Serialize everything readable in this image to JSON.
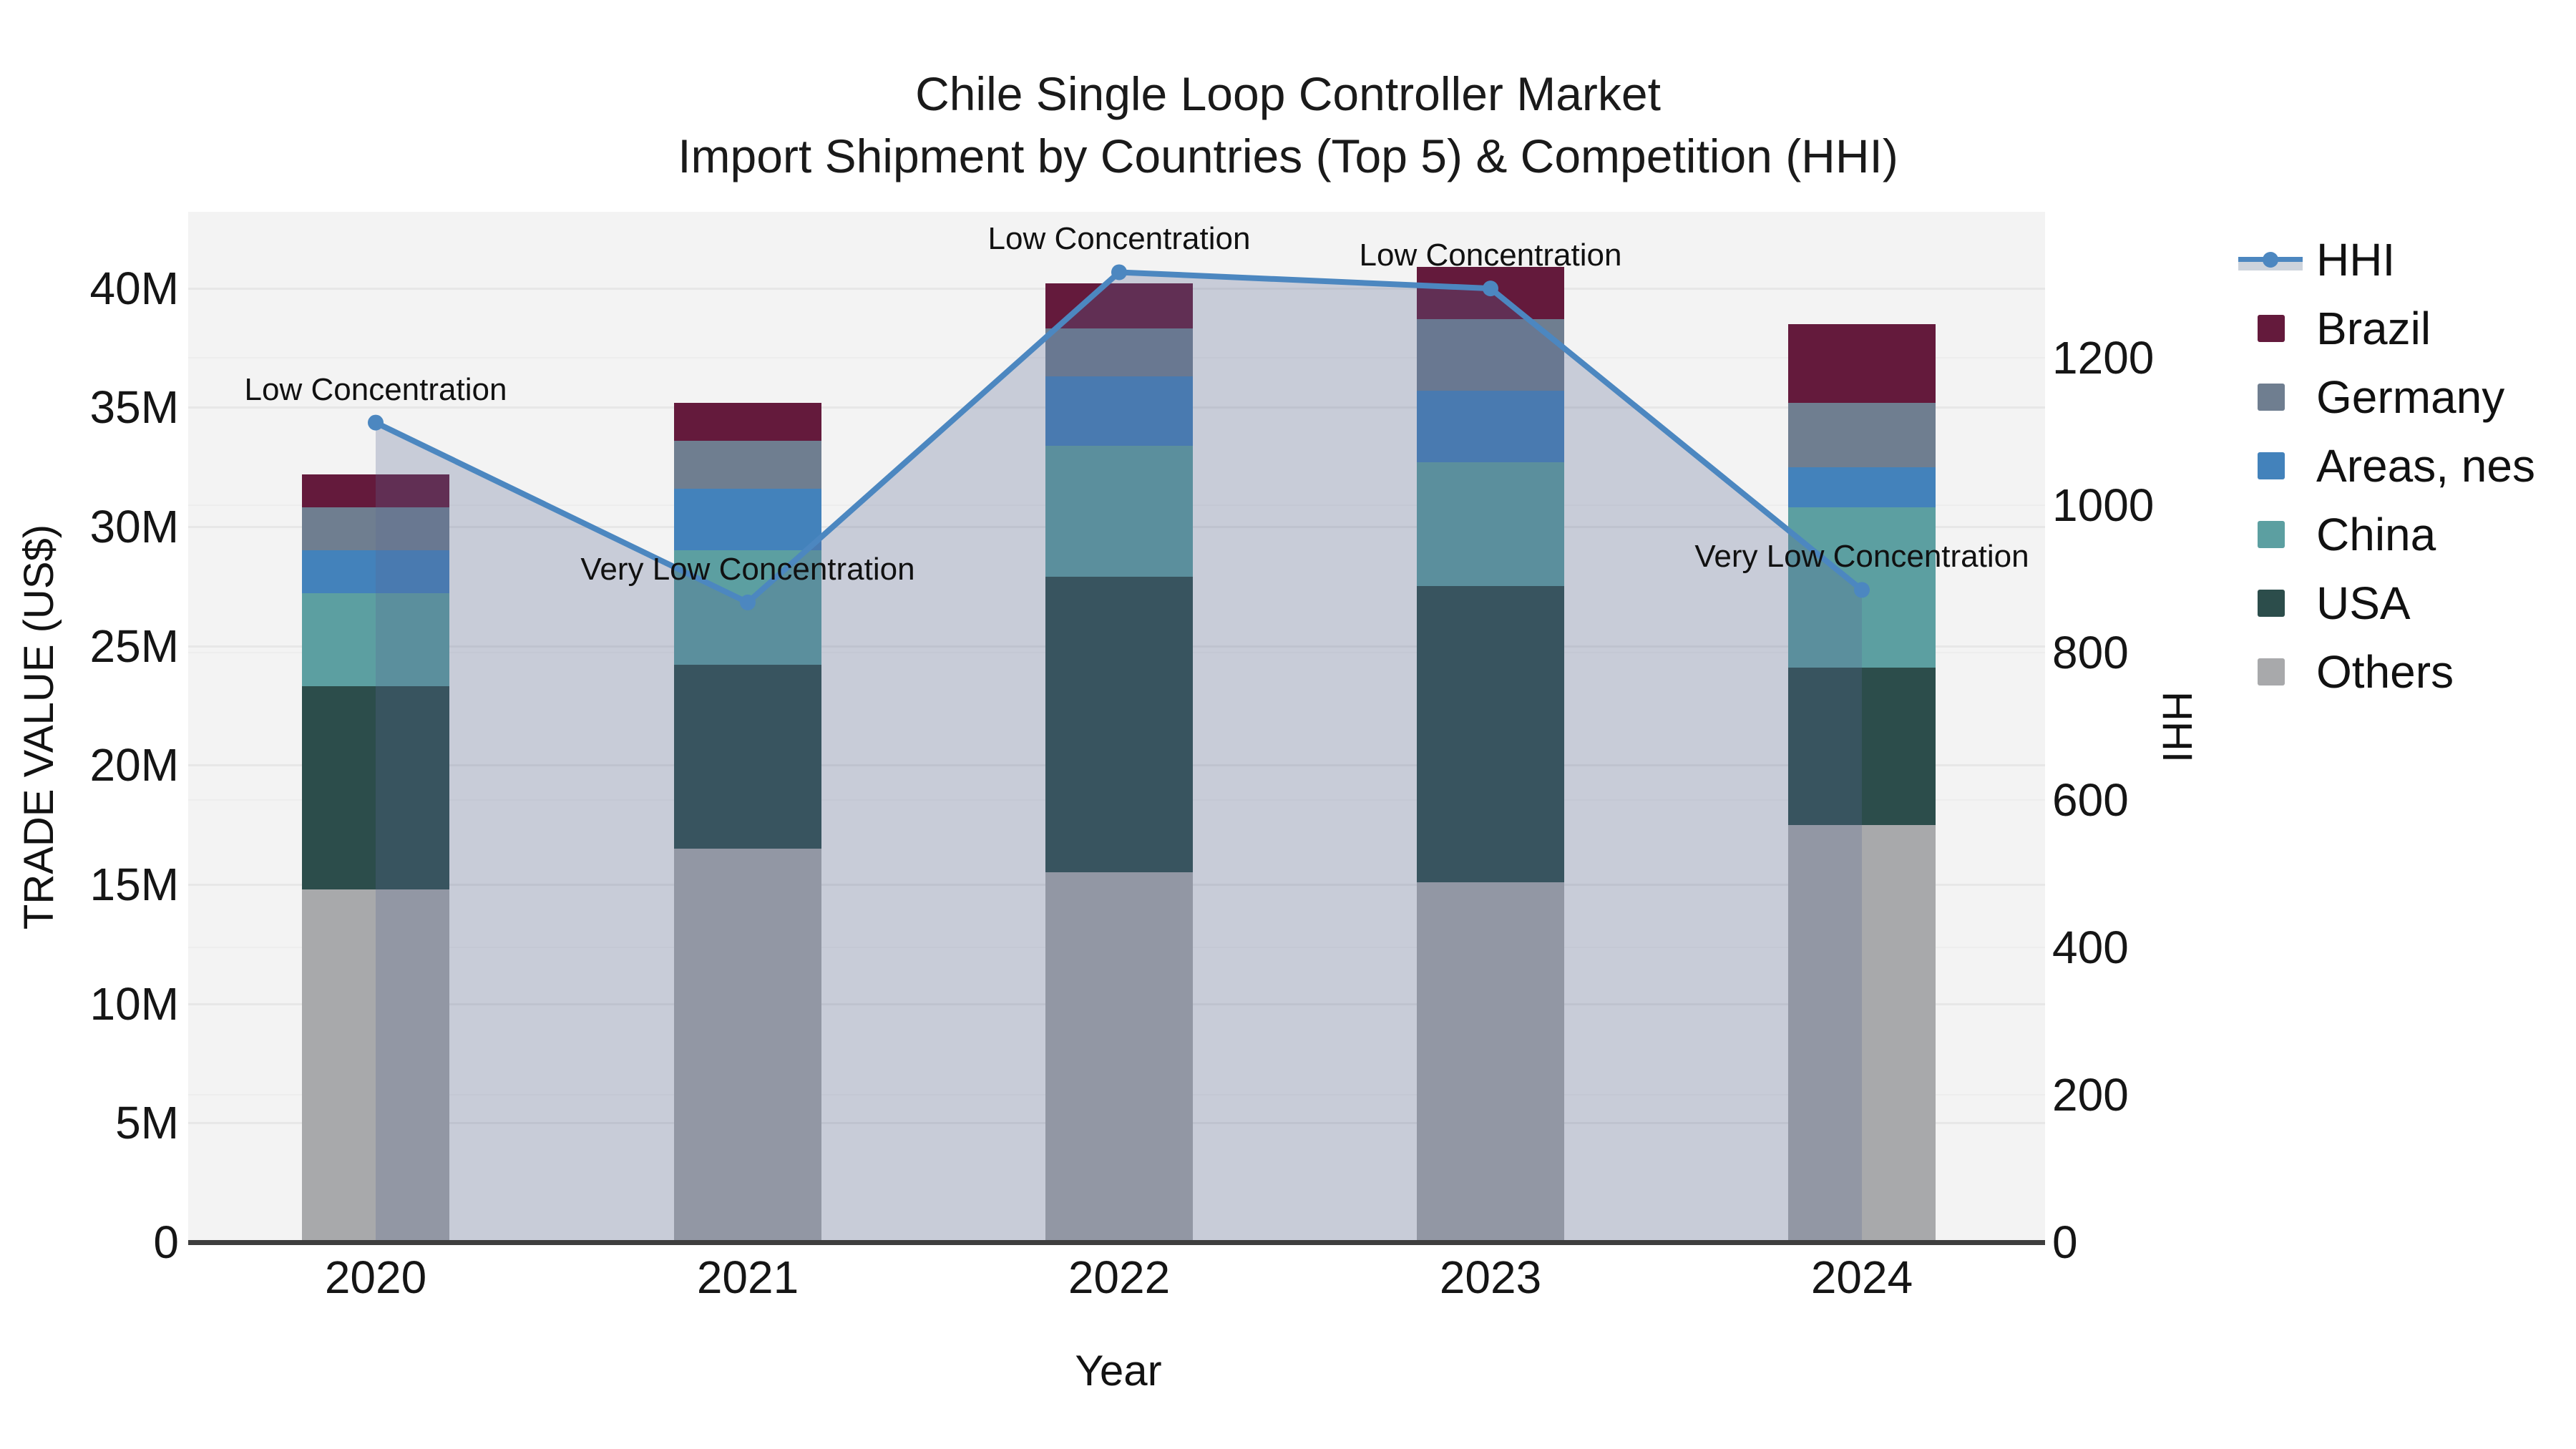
{
  "title": {
    "line1": "Chile Single Loop Controller Market",
    "line2": "Import Shipment by Countries (Top 5) & Competition (HHI)"
  },
  "chart_data": {
    "type": "bar",
    "subtype": "stacked-bars-with-line-overlay",
    "title": "Chile Single Loop Controller Market",
    "subtitle": "Import Shipment by Countries (Top 5) & Competition (HHI)",
    "categories": [
      "2020",
      "2021",
      "2022",
      "2023",
      "2024"
    ],
    "value_unit": "M",
    "series": [
      {
        "name": "Others",
        "color": "#a8a9ab",
        "values": [
          14.8,
          16.5,
          15.5,
          15.1,
          17.5
        ]
      },
      {
        "name": "USA",
        "color": "#2c4d4b",
        "values": [
          8.5,
          7.7,
          12.4,
          12.4,
          6.6
        ]
      },
      {
        "name": "China",
        "color": "#5c9fa1",
        "values": [
          3.9,
          4.8,
          5.5,
          5.2,
          6.7
        ]
      },
      {
        "name": "Areas, nes",
        "color": "#4382bb",
        "values": [
          1.8,
          2.6,
          2.9,
          3.0,
          1.7
        ]
      },
      {
        "name": "Germany",
        "color": "#6f7e90",
        "values": [
          1.8,
          2.0,
          2.0,
          3.0,
          2.7
        ]
      },
      {
        "name": "Brazil",
        "color": "#641a3c",
        "values": [
          1.4,
          1.6,
          1.9,
          2.2,
          3.3
        ]
      }
    ],
    "bar_totals": [
      32.2,
      35.2,
      40.2,
      40.9,
      38.5
    ],
    "line_series": {
      "name": "HHI",
      "axis": "right",
      "color": "#4c87c0",
      "area_fill": "rgba(88,104,146,0.28)",
      "values": [
        1112,
        868,
        1316,
        1294,
        885
      ]
    },
    "annotations": [
      {
        "category": "2020",
        "text": "Low Concentration"
      },
      {
        "category": "2021",
        "text": "Very Low Concentration"
      },
      {
        "category": "2022",
        "text": "Low Concentration"
      },
      {
        "category": "2023",
        "text": "Low Concentration"
      },
      {
        "category": "2024",
        "text": "Very Low Concentration"
      }
    ],
    "xlabel": "Year",
    "ylabel": "TRADE VALUE (US$)",
    "y2label": "HHI",
    "y_ticks": {
      "labels": [
        "0",
        "5M",
        "10M",
        "15M",
        "20M",
        "25M",
        "30M",
        "35M",
        "40M"
      ],
      "values": [
        0,
        5,
        10,
        15,
        20,
        25,
        30,
        35,
        40
      ]
    },
    "y2_ticks": {
      "labels": [
        "0",
        "200",
        "400",
        "600",
        "800",
        "1000",
        "1200"
      ],
      "values": [
        0,
        200,
        400,
        600,
        800,
        1000,
        1200
      ]
    },
    "ylim": [
      0,
      43.2
    ],
    "y2lim": [
      0,
      1398
    ],
    "grid": true,
    "plot_background": "#f3f3f3",
    "legend_position": "right",
    "legend_order": [
      "HHI",
      "Brazil",
      "Germany",
      "Areas, nes",
      "China",
      "USA",
      "Others"
    ]
  }
}
